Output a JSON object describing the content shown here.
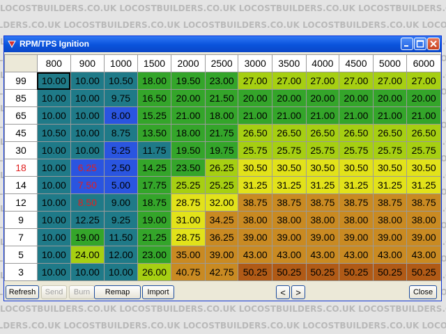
{
  "watermark": {
    "text": "LOCOSTBUILDERS.CO.UK"
  },
  "window": {
    "title": "RPM/TPS Ignition",
    "icon": "app-logo-icon",
    "controls": [
      "minimize-icon",
      "maximize-icon",
      "close-icon"
    ]
  },
  "table": {
    "columns": [
      "800",
      "900",
      "1000",
      "1500",
      "2000",
      "2500",
      "3000",
      "3500",
      "4000",
      "4500",
      "5000",
      "6000"
    ],
    "rows": [
      {
        "label": "99",
        "values": [
          "10.00",
          "10.00",
          "10.50",
          "18.00",
          "19.50",
          "23.00",
          "27.00",
          "27.00",
          "27.00",
          "27.00",
          "27.00",
          "27.00"
        ]
      },
      {
        "label": "85",
        "values": [
          "10.00",
          "10.00",
          "9.75",
          "16.50",
          "20.00",
          "21.50",
          "20.00",
          "20.00",
          "20.00",
          "20.00",
          "20.00",
          "20.00"
        ]
      },
      {
        "label": "65",
        "values": [
          "10.00",
          "10.00",
          "8.00",
          "15.25",
          "21.00",
          "18.00",
          "21.00",
          "21.00",
          "21.00",
          "21.00",
          "21.00",
          "21.00"
        ]
      },
      {
        "label": "45",
        "values": [
          "10.50",
          "10.00",
          "8.75",
          "13.50",
          "18.00",
          "21.75",
          "26.50",
          "26.50",
          "26.50",
          "26.50",
          "26.50",
          "26.50"
        ]
      },
      {
        "label": "30",
        "values": [
          "10.00",
          "10.00",
          "5.25",
          "11.75",
          "19.50",
          "19.75",
          "25.75",
          "25.75",
          "25.75",
          "25.75",
          "25.75",
          "25.75"
        ]
      },
      {
        "label": "18",
        "values": [
          "10.00",
          "6.25",
          "2.50",
          "14.25",
          "23.50",
          "26.25",
          "30.50",
          "30.50",
          "30.50",
          "30.50",
          "30.50",
          "30.50"
        ]
      },
      {
        "label": "14",
        "values": [
          "10.00",
          "7.50",
          "5.00",
          "17.75",
          "25.25",
          "25.25",
          "31.25",
          "31.25",
          "31.25",
          "31.25",
          "31.25",
          "31.25"
        ]
      },
      {
        "label": "12",
        "values": [
          "10.00",
          "8.50",
          "9.00",
          "18.75",
          "28.75",
          "32.00",
          "38.75",
          "38.75",
          "38.75",
          "38.75",
          "38.75",
          "38.75"
        ]
      },
      {
        "label": "9",
        "values": [
          "10.00",
          "12.25",
          "9.25",
          "19.00",
          "31.00",
          "34.25",
          "38.00",
          "38.00",
          "38.00",
          "38.00",
          "38.00",
          "38.00"
        ]
      },
      {
        "label": "7",
        "values": [
          "10.00",
          "19.00",
          "11.50",
          "21.25",
          "28.75",
          "36.25",
          "39.00",
          "39.00",
          "39.00",
          "39.00",
          "39.00",
          "39.00"
        ]
      },
      {
        "label": "5",
        "values": [
          "10.00",
          "24.00",
          "12.00",
          "23.00",
          "35.00",
          "39.00",
          "43.00",
          "43.00",
          "43.00",
          "43.00",
          "43.00",
          "43.00"
        ]
      },
      {
        "label": "3",
        "values": [
          "10.00",
          "10.00",
          "10.00",
          "26.00",
          "40.75",
          "42.75",
          "50.25",
          "50.25",
          "50.25",
          "50.25",
          "50.25",
          "50.25"
        ]
      }
    ],
    "highlighted_row_label": "18",
    "red_cells": [
      [
        5,
        1
      ],
      [
        6,
        1
      ],
      [
        7,
        1
      ]
    ],
    "selected_cell": [
      0,
      0
    ],
    "colors": {
      "teal": "#1f7a88",
      "blue": "#2a55e0",
      "green": "#34a52a",
      "yellowgreen": "#a6cf12",
      "yellow": "#e2e21a",
      "brown": "#c98a22",
      "dark_brown": "#b05a16",
      "row_label_highlight": "#e02020"
    }
  },
  "buttons": {
    "refresh": "Refresh",
    "send": "Send",
    "burn": "Burn",
    "remap": "Remap",
    "import": "Import",
    "prev": "<",
    "next": ">",
    "close": "Close"
  }
}
